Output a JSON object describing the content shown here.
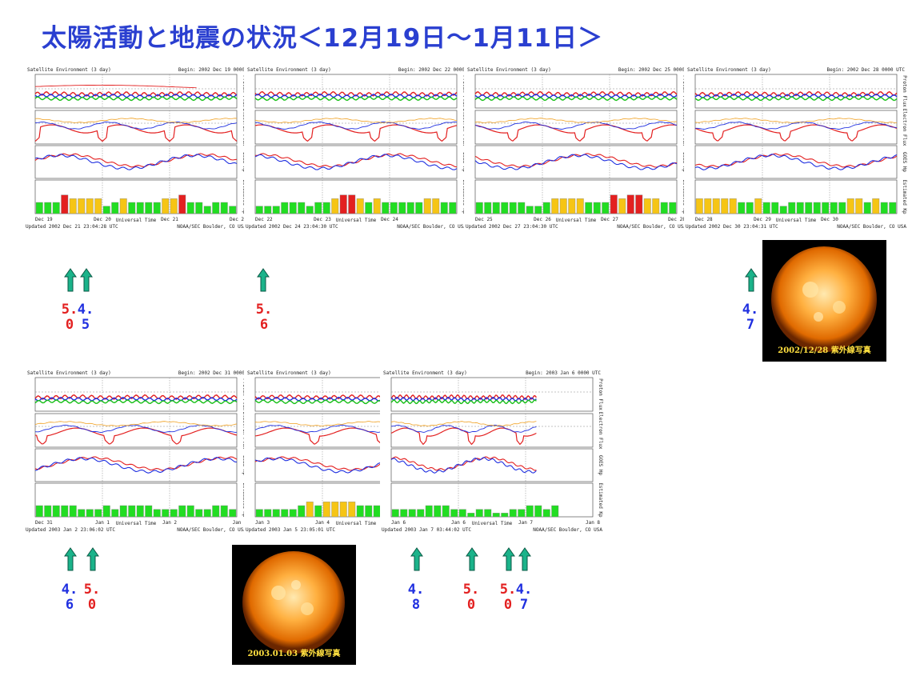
{
  "title": "太陽活動と地震の状況＜12月19日～1月11日＞",
  "colors": {
    "title": "#2a3fd0",
    "arrow": "#1bb38a",
    "red": "#e32020",
    "blue": "#2030e0"
  },
  "panel_common": {
    "header": "Satellite Environment (3 day)",
    "credit": "NOAA/SEC Boulder, CO USA",
    "xlabel": "Universal Time",
    "rows": [
      "Proton Flux",
      "Electron Flux",
      "GOES Hp",
      "Estimated Kp"
    ]
  },
  "panels": [
    {
      "begin": "Begin: 2002 Dec 19 0000",
      "updated": "Updated 2002 Dec 21 23:04:28 UTC",
      "ticks": [
        "Dec 19",
        "Dec 20",
        "Dec 21",
        "Dec 2"
      ]
    },
    {
      "begin": "Begin: 2002 Dec 22 0000",
      "updated": "Updated 2002 Dec 24 23:04:30 UTC",
      "ticks": [
        "Dec 22",
        "Dec 23",
        "Dec 24",
        ""
      ]
    },
    {
      "begin": "Begin: 2002 Dec 25 0000",
      "updated": "Updated 2002 Dec 27 23:04:30 UTC",
      "ticks": [
        "Dec 25",
        "Dec 26",
        "Dec 27",
        "Dec 28"
      ]
    },
    {
      "begin": "Begin: 2002 Dec 28 0000 UTC",
      "updated": "Updated 2002 Dec 30 23:04:31 UTC",
      "ticks": [
        "Dec 28",
        "Dec 29",
        "Dec 30",
        ""
      ]
    },
    {
      "begin": "Begin: 2002 Dec 31 0000",
      "updated": "Updated 2003 Jan 2 23:06:02 UTC",
      "ticks": [
        "Dec 31",
        "Jan 1",
        "Jan 2",
        "Jan"
      ]
    },
    {
      "begin": "Begin: 2003 Jan 3 0000",
      "updated": "Updated 2003 Jan 5 23:05:01 UTC",
      "ticks": [
        "Jan 3",
        "Jan 4",
        "Jan 5",
        ""
      ]
    },
    {
      "begin": "Begin: 2003 Jan 6 0000 UTC",
      "updated": "Updated 2003 Jan 7 03:44:02 UTC",
      "ticks": [
        "Jan 6",
        "Jan 6",
        "Jan 7",
        "Jan 8"
      ]
    }
  ],
  "markers": [
    {
      "mag": [
        "5",
        "0"
      ],
      "color": "red"
    },
    {
      "mag": [
        "4",
        "5"
      ],
      "color": "blue"
    },
    {
      "mag": [
        "5",
        "6"
      ],
      "color": "red"
    },
    {
      "mag": [
        "4",
        "7"
      ],
      "color": "blue"
    },
    {
      "mag": [
        "4",
        "6"
      ],
      "color": "blue"
    },
    {
      "mag": [
        "5",
        "0"
      ],
      "color": "red"
    },
    {
      "mag": [
        "4",
        "8"
      ],
      "color": "blue"
    },
    {
      "mag": [
        "5",
        "0"
      ],
      "color": "red"
    },
    {
      "mag": [
        "5",
        "0"
      ],
      "color": "red"
    },
    {
      "mag": [
        "4",
        "7"
      ],
      "color": "blue"
    }
  ],
  "sun_images": [
    {
      "caption": "2002/12/28 紫外線写真"
    },
    {
      "caption": "2003.01.03 紫外線写真"
    }
  ],
  "chart_data": {
    "type": "bar",
    "title": "",
    "ylabel": "Estimated Kp",
    "ylim": [
      0,
      9
    ],
    "kp_color_rule": {
      "green": "Kp < 4",
      "yellow": "Kp = 4",
      "red": "Kp >= 5"
    },
    "series": [
      {
        "name": "Estimated Kp",
        "values": [
          [
            3,
            3,
            3,
            5,
            4,
            4,
            4,
            4,
            2,
            3,
            4,
            3,
            3,
            3,
            3,
            4,
            4,
            5,
            3,
            3,
            2,
            3,
            3,
            2
          ],
          [
            2,
            2,
            2,
            3,
            3,
            3,
            2,
            3,
            3,
            4,
            5,
            5,
            4,
            3,
            4,
            3,
            3,
            3,
            3,
            3,
            4,
            4,
            3,
            3
          ],
          [
            3,
            3,
            3,
            3,
            3,
            3,
            2,
            2,
            3,
            4,
            4,
            4,
            4,
            3,
            3,
            3,
            5,
            4,
            5,
            5,
            4,
            4,
            3,
            3
          ],
          [
            4,
            4,
            4,
            4,
            4,
            3,
            3,
            4,
            3,
            3,
            2,
            3,
            3,
            3,
            3,
            3,
            3,
            3,
            4,
            4,
            3,
            4,
            3,
            3
          ],
          [
            3,
            3,
            3,
            3,
            3,
            2,
            2,
            2,
            3,
            2,
            3,
            3,
            3,
            3,
            2,
            2,
            2,
            3,
            3,
            2,
            2,
            3,
            3,
            2
          ],
          [
            2,
            2,
            2,
            2,
            2,
            3,
            4,
            3,
            4,
            4,
            4,
            4,
            3,
            3,
            3,
            3,
            2,
            2,
            2,
            2,
            3,
            3,
            3,
            3
          ],
          [
            2,
            2,
            2,
            2,
            3,
            3,
            3,
            2,
            2,
            1,
            2,
            2,
            1,
            1,
            2,
            2,
            3,
            3,
            2,
            3
          ]
        ]
      }
    ]
  }
}
